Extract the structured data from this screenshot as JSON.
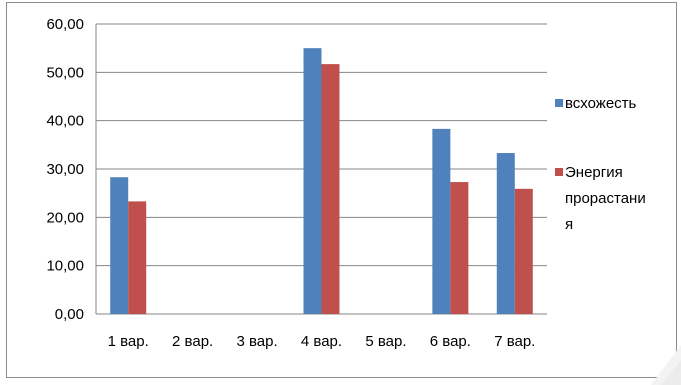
{
  "chart_data": {
    "type": "bar",
    "title": "",
    "xlabel": "",
    "ylabel": "",
    "categories": [
      "1 вар.",
      "2 вар.",
      "3 вар.",
      "4 вар.",
      "5 вар.",
      "6 вар.",
      "7 вар."
    ],
    "series": [
      {
        "name": "всхожесть",
        "color": "#4f81bd",
        "values": [
          28.3,
          null,
          null,
          55.0,
          null,
          38.3,
          33.3
        ]
      },
      {
        "name_lines": [
          "Энергия",
          "прорастани",
          "я"
        ],
        "color": "#c0504d",
        "values": [
          23.3,
          null,
          null,
          51.7,
          null,
          27.3,
          25.9
        ]
      }
    ],
    "ylim": [
      0,
      60
    ],
    "y_ticks": [
      "0,00",
      "10,00",
      "20,00",
      "30,00",
      "40,00",
      "50,00",
      "60,00"
    ],
    "grid": true,
    "legend_position": "right"
  }
}
